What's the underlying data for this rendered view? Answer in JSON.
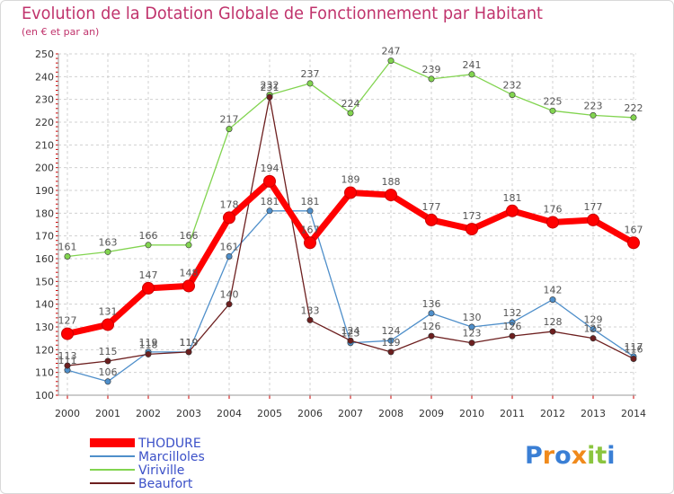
{
  "chart_data": {
    "type": "line",
    "title": "Evolution de la Dotation Globale de Fonctionnement par Habitant",
    "subtitle": "(en € et par an)",
    "xlabel": "",
    "ylabel": "",
    "ylim": [
      100,
      250
    ],
    "grid": true,
    "legend_position": "bottom-left",
    "x": [
      "2000",
      "2001",
      "2002",
      "2003",
      "2004",
      "2005",
      "2006",
      "2007",
      "2008",
      "2009",
      "2010",
      "2011",
      "2012",
      "2013",
      "2014"
    ],
    "y_ticks": [
      "100",
      "110",
      "120",
      "130",
      "140",
      "150",
      "160",
      "170",
      "180",
      "190",
      "200",
      "210",
      "220",
      "230",
      "240",
      "250"
    ],
    "series": [
      {
        "name": "THODURE",
        "color": "#ff0000",
        "values": [
          127,
          131,
          147,
          148,
          178,
          194,
          167,
          189,
          188,
          177,
          173,
          181,
          176,
          177,
          167
        ],
        "labels": [
          "127",
          "131",
          "147",
          "148",
          "178",
          "194",
          "167",
          "189",
          "188",
          "177",
          "173",
          "181",
          "176",
          "177",
          "167"
        ]
      },
      {
        "name": "Marcilloles",
        "color": "#4f8fca",
        "values": [
          111,
          106,
          119,
          119,
          161,
          181,
          181,
          123,
          124,
          136,
          130,
          132,
          142,
          129,
          117
        ],
        "labels": [
          "111",
          "106",
          "119",
          "119",
          "161",
          "181",
          "181",
          "123",
          "124",
          "136",
          "130",
          "132",
          "142",
          "129",
          "117"
        ]
      },
      {
        "name": "Viriville",
        "color": "#82d450",
        "values": [
          161,
          163,
          166,
          166,
          217,
          232,
          237,
          224,
          247,
          239,
          241,
          232,
          225,
          223,
          222
        ],
        "labels": [
          "161",
          "163",
          "166",
          "166",
          "217",
          "232",
          "237",
          "224",
          "247",
          "239",
          "241",
          "232",
          "225",
          "223",
          "222"
        ]
      },
      {
        "name": "Beaufort",
        "color": "#6d1f1f",
        "values": [
          113,
          115,
          118,
          119,
          140,
          231,
          133,
          124,
          119,
          126,
          123,
          126,
          128,
          125,
          116
        ],
        "labels": [
          "113",
          "115",
          "118",
          "119",
          "140",
          "231",
          "133",
          "124",
          "119",
          "126",
          "123",
          "126",
          "128",
          "125",
          "116"
        ]
      }
    ]
  },
  "logo": {
    "text": "Proxiti"
  }
}
